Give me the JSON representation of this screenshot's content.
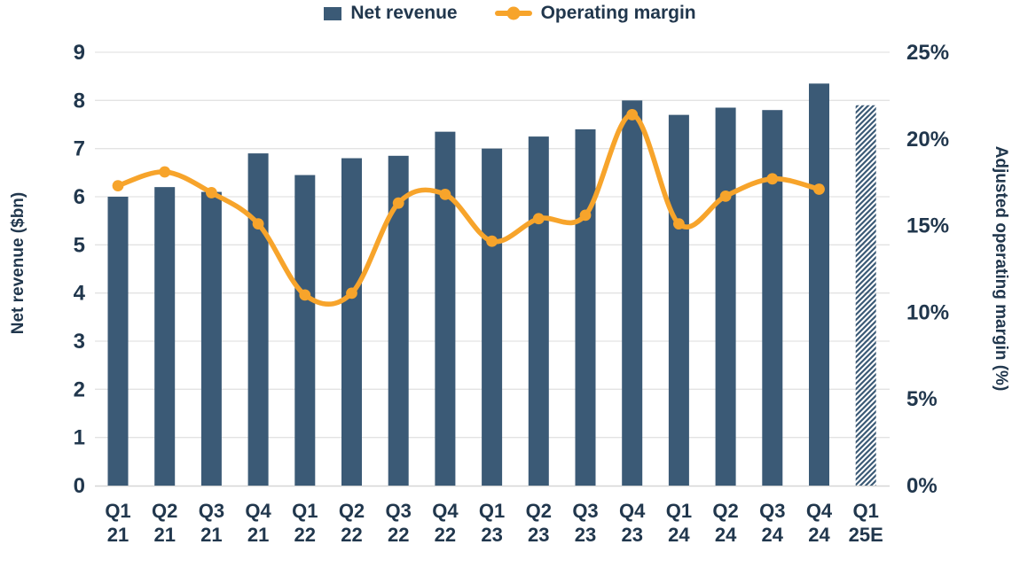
{
  "colors": {
    "bar": "#3b5a76",
    "line": "#f7a42b",
    "text": "#21374d",
    "gridline": "#e3e3e3",
    "baseline": "#d6d6d6",
    "background": "#ffffff"
  },
  "legend": {
    "position": "top-center",
    "items": [
      {
        "label": "Net revenue",
        "swatch": "bar-square"
      },
      {
        "label": "Operating margin",
        "swatch": "line-dot"
      }
    ]
  },
  "chart_data": {
    "type": "bar",
    "combo": "bar+line dual axis",
    "categories": [
      "Q1 21",
      "Q2 21",
      "Q3 21",
      "Q4 21",
      "Q1 22",
      "Q2 22",
      "Q3 22",
      "Q4 22",
      "Q1 23",
      "Q2 23",
      "Q3 23",
      "Q4 23",
      "Q1 24",
      "Q2 24",
      "Q3 24",
      "Q4 24",
      "Q1 25E"
    ],
    "series": [
      {
        "name": "Net revenue",
        "type": "bar",
        "axis": "left",
        "unit": "$bn",
        "values": [
          6.0,
          6.2,
          6.1,
          6.9,
          6.45,
          6.8,
          6.85,
          7.35,
          7.0,
          7.25,
          7.4,
          8.0,
          7.7,
          7.85,
          7.8,
          8.35,
          7.9
        ],
        "estimate_categories": [
          "Q1 25E"
        ],
        "estimate_style": "diagonal-hatch"
      },
      {
        "name": "Operating margin",
        "type": "line",
        "axis": "right",
        "unit": "%",
        "smooth": true,
        "values": [
          17.3,
          18.1,
          16.9,
          15.1,
          11.0,
          11.1,
          16.3,
          16.8,
          14.1,
          15.4,
          15.6,
          21.4,
          15.1,
          16.7,
          17.7,
          17.1,
          null
        ]
      }
    ],
    "left_axis": {
      "label": "Net revenue ($bn)",
      "min": 0,
      "max": 9,
      "ticks": [
        0,
        1,
        2,
        3,
        4,
        5,
        6,
        7,
        8,
        9
      ]
    },
    "right_axis": {
      "label": "Adjusted operating margin (%)",
      "min": 0,
      "max": 25,
      "tick_values": [
        0,
        5,
        10,
        15,
        20,
        25
      ],
      "tick_labels": [
        "0%",
        "5%",
        "10%",
        "15%",
        "20%",
        "25%"
      ]
    },
    "grid": "horizontal",
    "legend_position": "top"
  }
}
